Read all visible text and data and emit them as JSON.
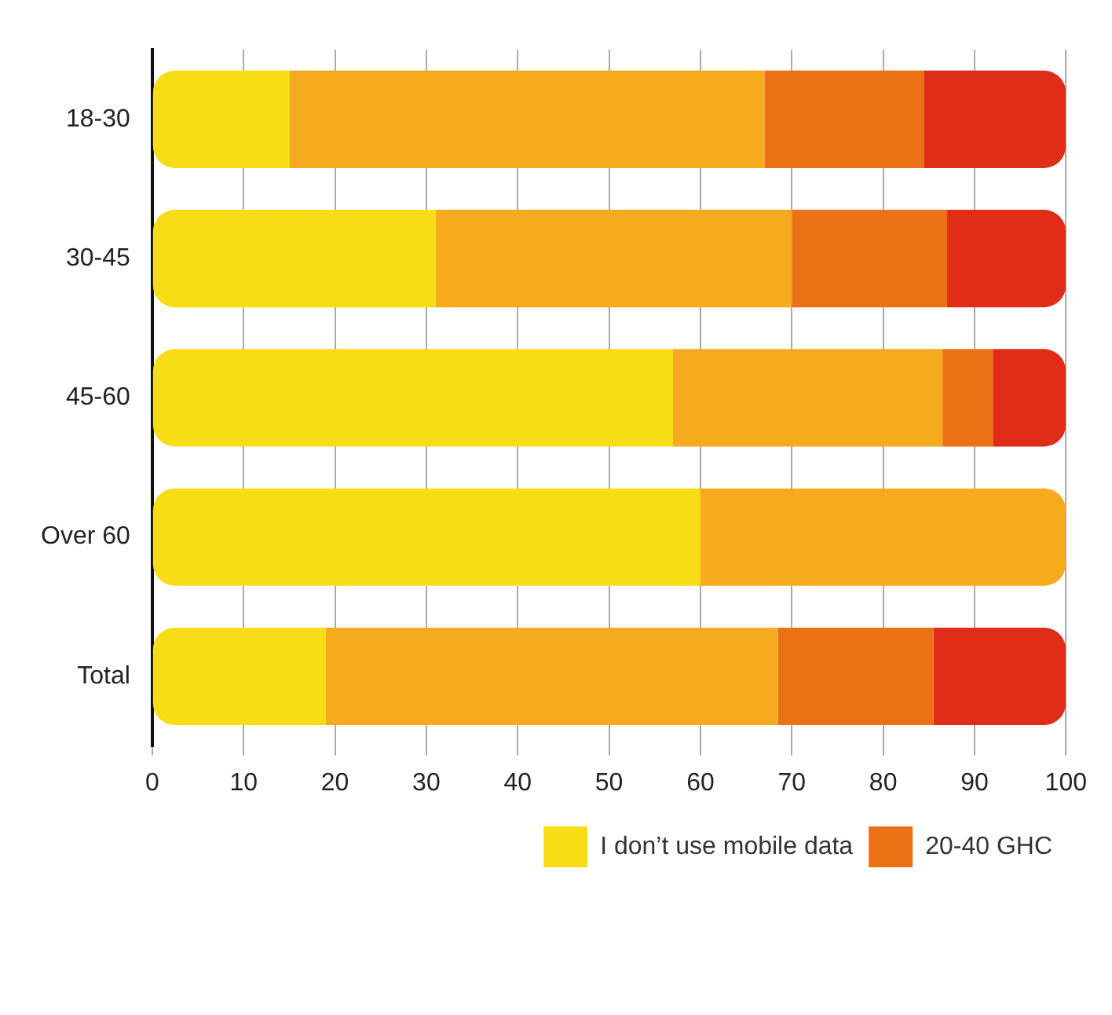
{
  "chart_data": {
    "type": "bar",
    "orientation": "horizontal",
    "stacked": true,
    "categories": [
      "18-30",
      "30-45",
      "45-60",
      "Over 60",
      "Total"
    ],
    "series": [
      {
        "name": "I don’t use mobile data",
        "color": "#f7dc16",
        "values": [
          15,
          31,
          57,
          60,
          19
        ]
      },
      {
        "color": "#f6aa1e",
        "values": [
          52,
          39,
          29.5,
          40,
          49.5
        ]
      },
      {
        "name": "20-40 GHC",
        "color": "#ec7016",
        "values": [
          17.5,
          17,
          5.5,
          0,
          17
        ]
      },
      {
        "color": "#e02d1a",
        "values": [
          15.5,
          13,
          8,
          0,
          14.5
        ]
      }
    ],
    "xlim": [
      0,
      100
    ],
    "xticks": [
      0,
      10,
      20,
      30,
      40,
      50,
      60,
      70,
      80,
      90,
      100
    ],
    "grid": "x",
    "legend": "bottom right"
  }
}
